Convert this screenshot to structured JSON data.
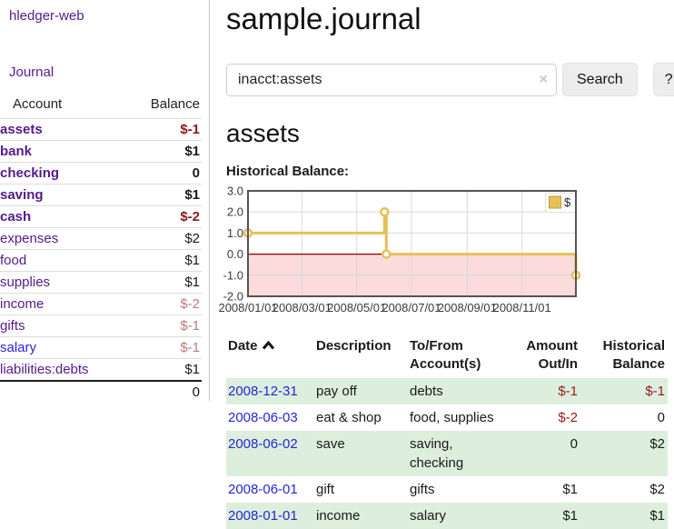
{
  "sidebar": {
    "app_title": "hledger-web",
    "nav": {
      "journal": "Journal"
    },
    "accounts_table": {
      "headers": {
        "account": "Account",
        "balance": "Balance"
      },
      "rows": [
        {
          "name": "assets",
          "balance": "$-1"
        },
        {
          "name": "bank",
          "balance": "$1"
        },
        {
          "name": "checking",
          "balance": "0"
        },
        {
          "name": "saving",
          "balance": "$1"
        },
        {
          "name": "cash",
          "balance": "$-2"
        },
        {
          "name": "expenses",
          "balance": "$2"
        },
        {
          "name": "food",
          "balance": "$1"
        },
        {
          "name": "supplies",
          "balance": "$1"
        },
        {
          "name": "income",
          "balance": "$-2"
        },
        {
          "name": "gifts",
          "balance": "$-1"
        },
        {
          "name": "salary",
          "balance": "$-1"
        },
        {
          "name": "liabilities:debts",
          "balance": "$1"
        }
      ],
      "total": "0"
    }
  },
  "header": {
    "title": "sample.journal"
  },
  "search": {
    "value": "inacct:assets",
    "clear_icon": "×",
    "button": "Search",
    "help_button": "?"
  },
  "account_view": {
    "title": "assets",
    "section_label": "Historical Balance:"
  },
  "chart_data": {
    "type": "line",
    "step": true,
    "title": "Historical Balance:",
    "x_domain": [
      "2008-01-01",
      "2008-12-31"
    ],
    "ylim": [
      -2,
      3
    ],
    "y_ticks": [
      3,
      2,
      1,
      0,
      -1,
      -2
    ],
    "x_ticks": [
      {
        "date": "2008-01-01",
        "label": "2008/01/01"
      },
      {
        "date": "2008-03-01",
        "label": "2008/03/01"
      },
      {
        "date": "2008-05-01",
        "label": "2008/05/01"
      },
      {
        "date": "2008-07-01",
        "label": "2008/07/01"
      },
      {
        "date": "2008-09-01",
        "label": "2008/09/01"
      },
      {
        "date": "2008-11-01",
        "label": "2008/11/01"
      }
    ],
    "series": [
      {
        "name": "$",
        "color": "#e6c157",
        "points": [
          {
            "date": "2008-01-01",
            "value": 1
          },
          {
            "date": "2008-06-01",
            "value": 2
          },
          {
            "date": "2008-06-03",
            "value": 0
          },
          {
            "date": "2008-12-31",
            "value": -1
          }
        ]
      }
    ],
    "legend": {
      "label": "$",
      "position": "top-right"
    },
    "grid": true,
    "negative_region_color": "#fbdbdb",
    "zero_line_color": "#8b0000"
  },
  "register": {
    "headers": {
      "date": "Date",
      "description": "Description",
      "accounts": "To/From Account(s)",
      "amount": "Amount Out/In",
      "balance": "Historical Balance"
    },
    "sort": {
      "column": "date",
      "direction": "ascending"
    },
    "rows": [
      {
        "date": "2008-12-31",
        "description": "pay off",
        "accounts": "debts",
        "amount": "$-1",
        "balance": "$-1"
      },
      {
        "date": "2008-06-03",
        "description": "eat & shop",
        "accounts": "food, supplies",
        "amount": "$-2",
        "balance": "0"
      },
      {
        "date": "2008-06-02",
        "description": "save",
        "accounts": "saving, checking",
        "amount": "0",
        "balance": "$2"
      },
      {
        "date": "2008-06-01",
        "description": "gift",
        "accounts": "gifts",
        "amount": "$1",
        "balance": "$2"
      },
      {
        "date": "2008-01-01",
        "description": "income",
        "accounts": "salary",
        "amount": "$1",
        "balance": "$1"
      }
    ]
  },
  "colors": {
    "link_purple": "#551a8b",
    "link_blue": "#2626d8",
    "negative_red": "#9a1b1b",
    "negative_muted": "#bd7b7b",
    "row_green": "#ddeedd",
    "chart_line_gold": "#e6c157",
    "chart_negative_fill": "#fbdbdb",
    "chart_zero_line": "#8b0000"
  }
}
